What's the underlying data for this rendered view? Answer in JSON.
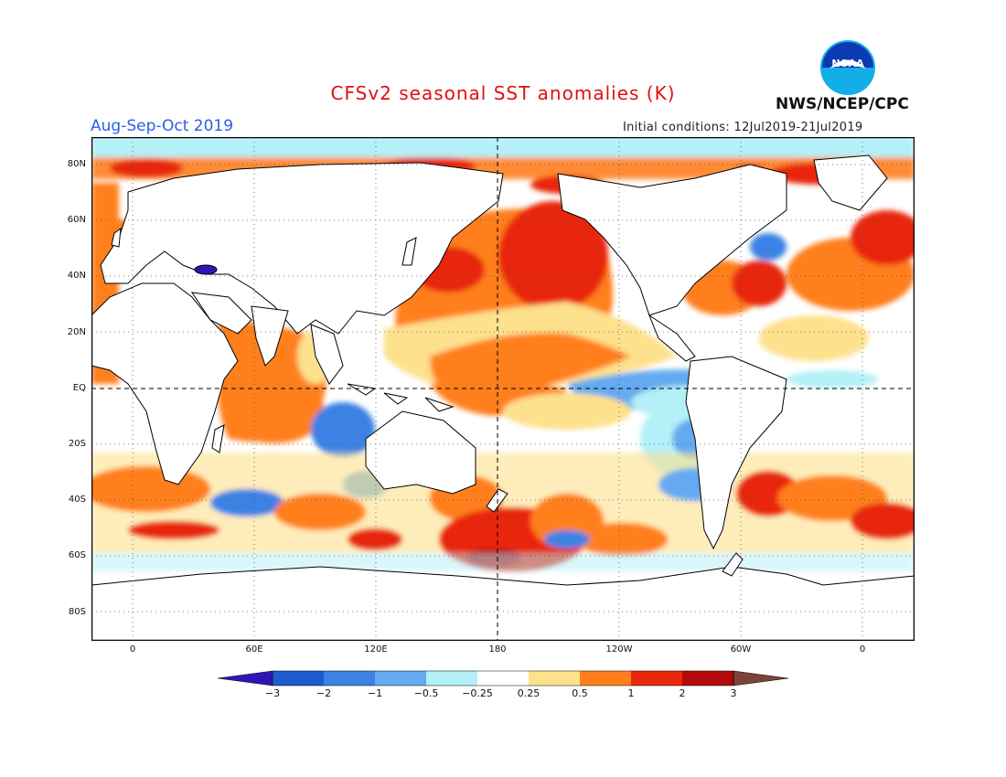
{
  "title": "CFSv2 seasonal SST anomalies (K)",
  "season": "Aug-Sep-Oct 2019",
  "initial_conditions": "Initial conditions: 12Jul2019-21Jul2019",
  "agency": "NWS/NCEP/CPC",
  "logo_text": "NOAA",
  "lat_labels": [
    "80N",
    "60N",
    "40N",
    "20N",
    "EQ",
    "20S",
    "40S",
    "60S",
    "80S"
  ],
  "lon_labels": [
    "0",
    "60E",
    "120E",
    "180",
    "120W",
    "60W",
    "0"
  ],
  "colorbar": {
    "labels": [
      "−3",
      "−2",
      "−1",
      "−0.5",
      "−0.25",
      "0.25",
      "0.5",
      "1",
      "2",
      "3"
    ],
    "colors": [
      "#2e16b4",
      "#1e5ad0",
      "#3a82e4",
      "#64aaf0",
      "#b4f0f8",
      "#ffffff",
      "#fde18c",
      "#ff7f1c",
      "#e8280c",
      "#b40a0a",
      "#7a4436"
    ]
  },
  "colors": {
    "title": "#e01010",
    "season": "#2a5ee8",
    "ocean_background": "#ffffff",
    "land": "#ffffff"
  }
}
